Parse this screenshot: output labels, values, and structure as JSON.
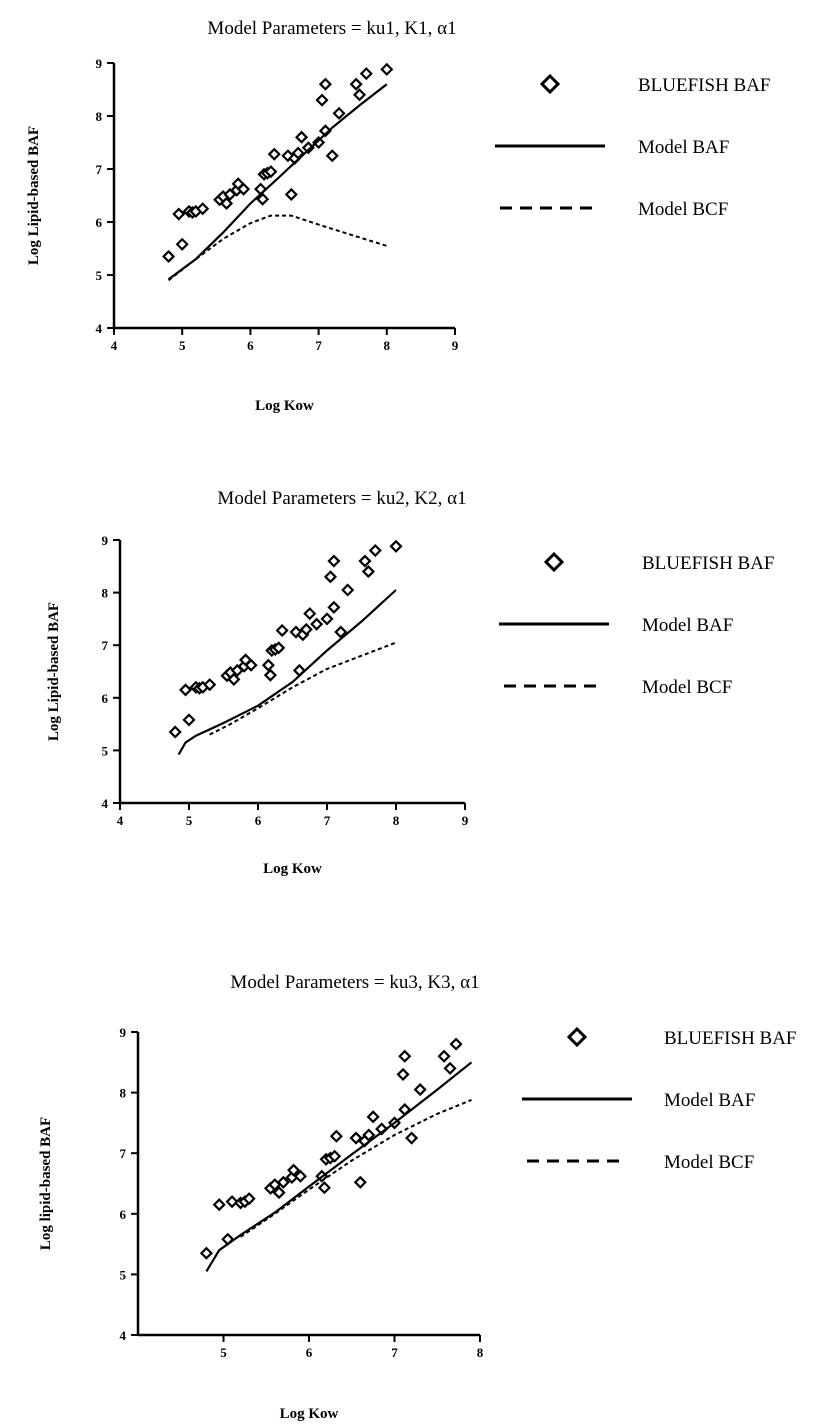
{
  "chart_data": [
    {
      "type": "scatter",
      "title": "Model Parameters = ku1, K1, α1",
      "xlabel": "Log Kow",
      "ylabel": "Log Lipid-based BAF",
      "xlim": [
        4,
        9
      ],
      "ylim": [
        4,
        9
      ],
      "xticks": [
        "4",
        "5",
        "6",
        "7",
        "8",
        "9"
      ],
      "yticks": [
        "4",
        "5",
        "6",
        "7",
        "8",
        "9"
      ],
      "legend": {
        "position": "right",
        "entries": [
          "BLUEFISH BAF",
          "Model BAF",
          "Model BCF"
        ]
      },
      "series": [
        {
          "name": "BLUEFISH BAF",
          "style": "diamond",
          "points": [
            [
              4.8,
              5.35
            ],
            [
              4.95,
              6.15
            ],
            [
              5.0,
              5.58
            ],
            [
              5.1,
              6.2
            ],
            [
              5.15,
              6.18
            ],
            [
              5.2,
              6.2
            ],
            [
              5.3,
              6.25
            ],
            [
              5.55,
              6.42
            ],
            [
              5.6,
              6.48
            ],
            [
              5.65,
              6.35
            ],
            [
              5.7,
              6.52
            ],
            [
              5.8,
              6.6
            ],
            [
              5.82,
              6.72
            ],
            [
              5.9,
              6.62
            ],
            [
              6.15,
              6.62
            ],
            [
              6.18,
              6.43
            ],
            [
              6.2,
              6.9
            ],
            [
              6.25,
              6.92
            ],
            [
              6.3,
              6.95
            ],
            [
              6.35,
              7.28
            ],
            [
              6.55,
              7.25
            ],
            [
              6.6,
              6.52
            ],
            [
              6.65,
              7.2
            ],
            [
              6.7,
              7.3
            ],
            [
              6.75,
              7.6
            ],
            [
              6.85,
              7.4
            ],
            [
              7.0,
              7.5
            ],
            [
              7.05,
              8.3
            ],
            [
              7.1,
              8.6
            ],
            [
              7.1,
              7.72
            ],
            [
              7.2,
              7.25
            ],
            [
              7.3,
              8.05
            ],
            [
              7.55,
              8.6
            ],
            [
              7.6,
              8.4
            ],
            [
              7.7,
              8.8
            ],
            [
              8.0,
              8.88
            ]
          ]
        },
        {
          "name": "Model BAF",
          "style": "solid",
          "points": [
            [
              4.8,
              4.92
            ],
            [
              5.2,
              5.3
            ],
            [
              5.6,
              5.8
            ],
            [
              6.0,
              6.35
            ],
            [
              6.4,
              6.82
            ],
            [
              6.8,
              7.3
            ],
            [
              7.2,
              7.78
            ],
            [
              7.6,
              8.2
            ],
            [
              8.0,
              8.6
            ]
          ]
        },
        {
          "name": "Model BCF",
          "style": "dashed",
          "points": [
            [
              4.8,
              4.9
            ],
            [
              5.2,
              5.3
            ],
            [
              5.6,
              5.68
            ],
            [
              6.0,
              5.98
            ],
            [
              6.3,
              6.12
            ],
            [
              6.6,
              6.12
            ],
            [
              7.0,
              5.95
            ],
            [
              7.5,
              5.75
            ],
            [
              8.0,
              5.55
            ]
          ]
        }
      ]
    },
    {
      "type": "scatter",
      "title": "Model Parameters = ku2, K2, α1",
      "xlabel": "Log Kow",
      "ylabel": "Log Lipid-based BAF",
      "xlim": [
        4,
        9
      ],
      "ylim": [
        4,
        9
      ],
      "xticks": [
        "4",
        "5",
        "6",
        "7",
        "8",
        "9"
      ],
      "yticks": [
        "4",
        "5",
        "6",
        "7",
        "8",
        "9"
      ],
      "legend": {
        "position": "right",
        "entries": [
          "BLUEFISH BAF",
          "Model BAF",
          "Model  BCF"
        ]
      },
      "series": [
        {
          "name": "BLUEFISH BAF",
          "style": "diamond",
          "points": [
            [
              4.8,
              5.35
            ],
            [
              4.95,
              6.15
            ],
            [
              5.0,
              5.58
            ],
            [
              5.1,
              6.2
            ],
            [
              5.15,
              6.18
            ],
            [
              5.2,
              6.2
            ],
            [
              5.3,
              6.25
            ],
            [
              5.55,
              6.42
            ],
            [
              5.6,
              6.48
            ],
            [
              5.65,
              6.35
            ],
            [
              5.7,
              6.52
            ],
            [
              5.8,
              6.6
            ],
            [
              5.82,
              6.72
            ],
            [
              5.9,
              6.62
            ],
            [
              6.15,
              6.62
            ],
            [
              6.18,
              6.43
            ],
            [
              6.2,
              6.9
            ],
            [
              6.25,
              6.92
            ],
            [
              6.3,
              6.95
            ],
            [
              6.35,
              7.28
            ],
            [
              6.55,
              7.25
            ],
            [
              6.6,
              6.52
            ],
            [
              6.65,
              7.2
            ],
            [
              6.7,
              7.3
            ],
            [
              6.75,
              7.6
            ],
            [
              6.85,
              7.4
            ],
            [
              7.0,
              7.5
            ],
            [
              7.05,
              8.3
            ],
            [
              7.1,
              8.6
            ],
            [
              7.1,
              7.72
            ],
            [
              7.2,
              7.25
            ],
            [
              7.3,
              8.05
            ],
            [
              7.55,
              8.6
            ],
            [
              7.6,
              8.4
            ],
            [
              7.7,
              8.8
            ],
            [
              8.0,
              8.88
            ]
          ]
        },
        {
          "name": "Model BAF",
          "style": "solid",
          "points": [
            [
              4.85,
              4.92
            ],
            [
              4.95,
              5.15
            ],
            [
              5.1,
              5.28
            ],
            [
              5.5,
              5.52
            ],
            [
              6.0,
              5.85
            ],
            [
              6.5,
              6.3
            ],
            [
              7.0,
              6.9
            ],
            [
              7.5,
              7.45
            ],
            [
              8.0,
              8.05
            ]
          ]
        },
        {
          "name": "Model BCF",
          "style": "dashed",
          "points": [
            [
              5.3,
              5.3
            ],
            [
              5.6,
              5.5
            ],
            [
              6.0,
              5.8
            ],
            [
              6.5,
              6.2
            ],
            [
              7.0,
              6.55
            ],
            [
              7.5,
              6.8
            ],
            [
              8.0,
              7.05
            ]
          ]
        }
      ]
    },
    {
      "type": "scatter",
      "title": "Model Parameters = ku3, K3, α1",
      "xlabel": "Log Kow",
      "ylabel": "Log lipid-based BAF",
      "xlim": [
        4,
        8
      ],
      "ylim": [
        4,
        9
      ],
      "xticks": [
        "5",
        "6",
        "7",
        "8"
      ],
      "yticks": [
        "4",
        "5",
        "6",
        "7",
        "8",
        "9"
      ],
      "legend": {
        "position": "right",
        "entries": [
          "BLUEFISH BAF",
          "Model BAF",
          "Model  BCF"
        ]
      },
      "series": [
        {
          "name": "BLUEFISH BAF",
          "style": "diamond",
          "points": [
            [
              4.8,
              5.35
            ],
            [
              4.95,
              6.15
            ],
            [
              5.05,
              5.58
            ],
            [
              5.1,
              6.2
            ],
            [
              5.2,
              6.18
            ],
            [
              5.25,
              6.2
            ],
            [
              5.3,
              6.25
            ],
            [
              5.55,
              6.42
            ],
            [
              5.6,
              6.48
            ],
            [
              5.65,
              6.35
            ],
            [
              5.7,
              6.52
            ],
            [
              5.8,
              6.6
            ],
            [
              5.82,
              6.72
            ],
            [
              5.9,
              6.62
            ],
            [
              6.15,
              6.62
            ],
            [
              6.18,
              6.43
            ],
            [
              6.2,
              6.9
            ],
            [
              6.25,
              6.92
            ],
            [
              6.3,
              6.95
            ],
            [
              6.32,
              7.28
            ],
            [
              6.55,
              7.25
            ],
            [
              6.6,
              6.52
            ],
            [
              6.65,
              7.2
            ],
            [
              6.7,
              7.3
            ],
            [
              6.75,
              7.6
            ],
            [
              6.85,
              7.4
            ],
            [
              7.0,
              7.5
            ],
            [
              7.1,
              8.3
            ],
            [
              7.12,
              8.6
            ],
            [
              7.12,
              7.72
            ],
            [
              7.2,
              7.25
            ],
            [
              7.3,
              8.05
            ],
            [
              7.58,
              8.6
            ],
            [
              7.65,
              8.4
            ],
            [
              7.72,
              8.8
            ]
          ]
        },
        {
          "name": "Model BAF",
          "style": "solid",
          "points": [
            [
              4.8,
              5.05
            ],
            [
              4.95,
              5.4
            ],
            [
              5.2,
              5.65
            ],
            [
              5.6,
              6.02
            ],
            [
              6.0,
              6.45
            ],
            [
              6.5,
              6.98
            ],
            [
              7.0,
              7.5
            ],
            [
              7.5,
              8.05
            ],
            [
              7.9,
              8.5
            ]
          ]
        },
        {
          "name": "Model BCF",
          "style": "dashed",
          "points": [
            [
              5.2,
              5.62
            ],
            [
              5.6,
              6.0
            ],
            [
              6.0,
              6.4
            ],
            [
              6.5,
              6.88
            ],
            [
              7.0,
              7.3
            ],
            [
              7.5,
              7.65
            ],
            [
              7.9,
              7.88
            ]
          ]
        }
      ]
    }
  ]
}
